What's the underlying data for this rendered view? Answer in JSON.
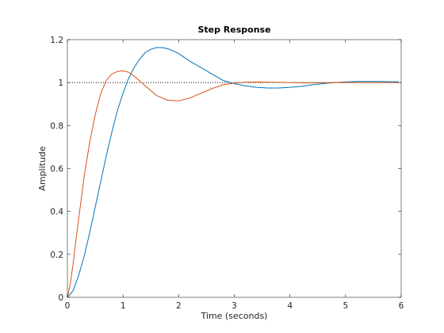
{
  "chart_data": {
    "type": "line",
    "title": "Step Response",
    "xlabel": "Time (seconds)",
    "ylabel": "Amplitude",
    "xlim": [
      0,
      6
    ],
    "ylim": [
      0,
      1.2
    ],
    "x_ticks": [
      "0",
      "1",
      "2",
      "3",
      "4",
      "5",
      "6"
    ],
    "y_ticks": [
      "0",
      "0.2",
      "0.4",
      "0.6",
      "0.8",
      "1",
      "1.2"
    ],
    "grid": false,
    "reference_line": {
      "y": 1,
      "style": "dotted",
      "color": "#000000"
    },
    "series": [
      {
        "color": "#0072BD",
        "x": [
          0,
          0.1,
          0.2,
          0.3,
          0.4,
          0.5,
          0.6,
          0.7,
          0.8,
          0.9,
          1.0,
          1.1,
          1.2,
          1.3,
          1.4,
          1.5,
          1.6,
          1.7,
          1.8,
          1.9,
          2.0,
          2.2,
          2.4,
          2.6,
          2.8,
          3.0,
          3.2,
          3.4,
          3.6,
          3.8,
          4.0,
          4.2,
          4.4,
          4.6,
          4.8,
          5.0,
          5.2,
          5.4,
          5.6,
          5.8,
          5.95
        ],
        "y": [
          0,
          0.03,
          0.1,
          0.19,
          0.3,
          0.42,
          0.54,
          0.66,
          0.77,
          0.87,
          0.95,
          1.02,
          1.07,
          1.11,
          1.14,
          1.155,
          1.163,
          1.163,
          1.158,
          1.148,
          1.135,
          1.1,
          1.07,
          1.04,
          1.01,
          0.995,
          0.985,
          0.978,
          0.975,
          0.975,
          0.978,
          0.982,
          0.99,
          0.995,
          1.0,
          1.003,
          1.005,
          1.005,
          1.005,
          1.004,
          1.004
        ]
      },
      {
        "color": "#D95319",
        "x": [
          0,
          0.05,
          0.1,
          0.15,
          0.2,
          0.3,
          0.4,
          0.5,
          0.6,
          0.7,
          0.8,
          0.9,
          1.0,
          1.1,
          1.2,
          1.4,
          1.6,
          1.8,
          2.0,
          2.2,
          2.4,
          2.6,
          2.8,
          3.0,
          3.2,
          3.4,
          3.6,
          3.8,
          4.0,
          4.2,
          4.4,
          4.6,
          4.8,
          5.0,
          5.2,
          5.4,
          5.6,
          5.8,
          5.95
        ],
        "y": [
          0,
          0.06,
          0.15,
          0.26,
          0.36,
          0.56,
          0.72,
          0.85,
          0.95,
          1.01,
          1.04,
          1.052,
          1.055,
          1.048,
          1.03,
          0.985,
          0.94,
          0.918,
          0.915,
          0.928,
          0.95,
          0.972,
          0.99,
          0.998,
          1.002,
          1.003,
          1.002,
          1.001,
          1.0,
          0.999,
          0.999,
          0.999,
          1.0,
          1.0,
          1.0,
          1.0,
          1.0,
          1.0,
          1.0
        ]
      }
    ]
  }
}
